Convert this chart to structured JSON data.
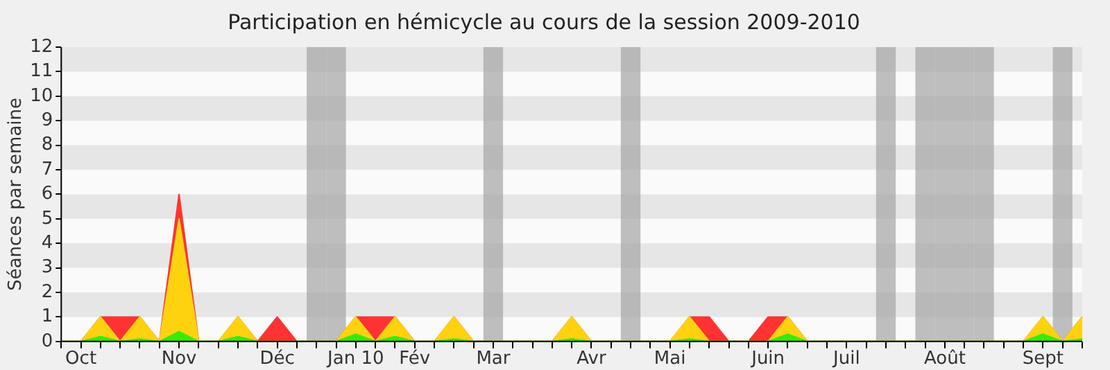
{
  "chart_data": {
    "type": "area",
    "title": "Participation en hémicycle au cours de la session 2009-2010",
    "ylabel": "Séances par semaine",
    "stacked": true,
    "marker": "none",
    "legend": false,
    "categories": [
      null,
      "Oct",
      null,
      null,
      null,
      null,
      "Nov",
      null,
      null,
      null,
      null,
      "Déc",
      null,
      null,
      null,
      "Jan 10",
      null,
      null,
      "Fév",
      null,
      null,
      null,
      "Mar",
      null,
      null,
      null,
      null,
      "Avr",
      null,
      null,
      null,
      "Mai",
      null,
      null,
      null,
      null,
      "Juin",
      null,
      null,
      null,
      "Juil",
      null,
      null,
      null,
      null,
      "Août",
      null,
      null,
      null,
      null,
      "Sept",
      null,
      null
    ],
    "series": [
      {
        "type": "bar",
        "color": "#a0a0a0",
        "values": [
          null,
          null,
          null,
          null,
          null,
          null,
          null,
          null,
          null,
          null,
          null,
          null,
          null,
          12,
          12,
          null,
          null,
          null,
          null,
          null,
          null,
          null,
          12,
          null,
          null,
          null,
          null,
          null,
          null,
          12,
          null,
          null,
          null,
          null,
          null,
          null,
          null,
          null,
          null,
          null,
          null,
          null,
          12,
          null,
          12,
          12,
          12,
          12,
          null,
          null,
          null,
          12,
          null
        ]
      },
      {
        "color": "#33ee00",
        "values": [
          0,
          0,
          0.2,
          0,
          0.1,
          0,
          0.4,
          0,
          0,
          0.2,
          0,
          0,
          0,
          0,
          0,
          0.3,
          0,
          0.2,
          0,
          0,
          0.1,
          0,
          0,
          0,
          0,
          0,
          0.1,
          0,
          0,
          0,
          0,
          0,
          0.1,
          0,
          0,
          0,
          0,
          0.3,
          0,
          0,
          0,
          0,
          0,
          0,
          0,
          0,
          0,
          0,
          0,
          0,
          0.3,
          0,
          0.1
        ]
      },
      {
        "color": "#ffd20f",
        "values": [
          0,
          0,
          0.8,
          0,
          0.9,
          0,
          4.6,
          0,
          0,
          0.8,
          0,
          0,
          0,
          0,
          0,
          0.7,
          0,
          0.8,
          0,
          0,
          0.9,
          0,
          0,
          0,
          0,
          0,
          0.9,
          0,
          0,
          0,
          0,
          0,
          0.9,
          0,
          0,
          0,
          0,
          0.7,
          0,
          0,
          0,
          0,
          0,
          0,
          0,
          0,
          0,
          0,
          0,
          0,
          0.7,
          0,
          0.9
        ]
      },
      {
        "color": "#ff3333",
        "values": [
          0,
          0,
          0,
          1,
          0,
          0,
          1,
          0,
          0,
          0,
          0,
          1,
          0,
          0,
          0,
          0,
          1,
          0,
          0,
          0,
          0,
          0,
          0,
          0,
          0,
          0,
          0,
          0,
          0,
          0,
          0,
          0,
          0,
          1,
          0,
          0,
          1,
          0,
          0,
          0,
          0,
          0,
          0,
          0,
          0,
          0,
          0,
          0,
          0,
          0,
          0,
          0,
          0
        ]
      }
    ],
    "ylim": [
      0,
      12
    ],
    "yticks": [
      0,
      1,
      2,
      3,
      4,
      5,
      6,
      7,
      8,
      9,
      10,
      11,
      12
    ]
  }
}
